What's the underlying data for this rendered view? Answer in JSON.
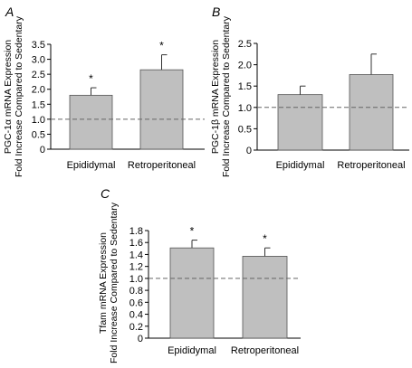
{
  "chart_data": [
    {
      "type": "bar",
      "panel_label": "A",
      "ylabel_lines": [
        "PGC-1α mRNA Expression",
        "Fold Increase Compared to Sedentary"
      ],
      "categories": [
        "Epididymal",
        "Retroperitoneal"
      ],
      "values": [
        1.8,
        2.65
      ],
      "errors": [
        0.25,
        0.5
      ],
      "significance": [
        "*",
        "*"
      ],
      "ylim": [
        0,
        3.5
      ],
      "yticks": [
        "0",
        "0.5",
        "1.0",
        "1.5",
        "2.0",
        "2.5",
        "3.0",
        "3.5"
      ],
      "reference_line": 1.0,
      "bar_color": "#bfbfbf"
    },
    {
      "type": "bar",
      "panel_label": "B",
      "ylabel_lines": [
        "PGC-1β mRNA Expression",
        "Fold Increase Compared to Sedentary"
      ],
      "categories": [
        "Epididymal",
        "Retroperitoneal"
      ],
      "values": [
        1.3,
        1.77
      ],
      "errors": [
        0.2,
        0.48
      ],
      "significance": [
        "",
        ""
      ],
      "ylim": [
        0,
        2.5
      ],
      "yticks": [
        "0",
        "0.5",
        "1.0",
        "1.5",
        "2.0",
        "2.5"
      ],
      "reference_line": 1.0,
      "bar_color": "#bfbfbf"
    },
    {
      "type": "bar",
      "panel_label": "C",
      "ylabel_lines": [
        "Tfam mRNA Expression",
        "Fold Increase Compared to Sedentary"
      ],
      "categories": [
        "Epididymal",
        "Retroperitoneal"
      ],
      "values": [
        1.51,
        1.37
      ],
      "errors": [
        0.13,
        0.14
      ],
      "significance": [
        "*",
        "*"
      ],
      "ylim": [
        0,
        1.8
      ],
      "yticks": [
        "0",
        "0.2",
        "0.4",
        "0.6",
        "0.8",
        "1.0",
        "1.2",
        "1.4",
        "1.6",
        "1.8"
      ],
      "reference_line": 1.0,
      "bar_color": "#bfbfbf"
    }
  ]
}
